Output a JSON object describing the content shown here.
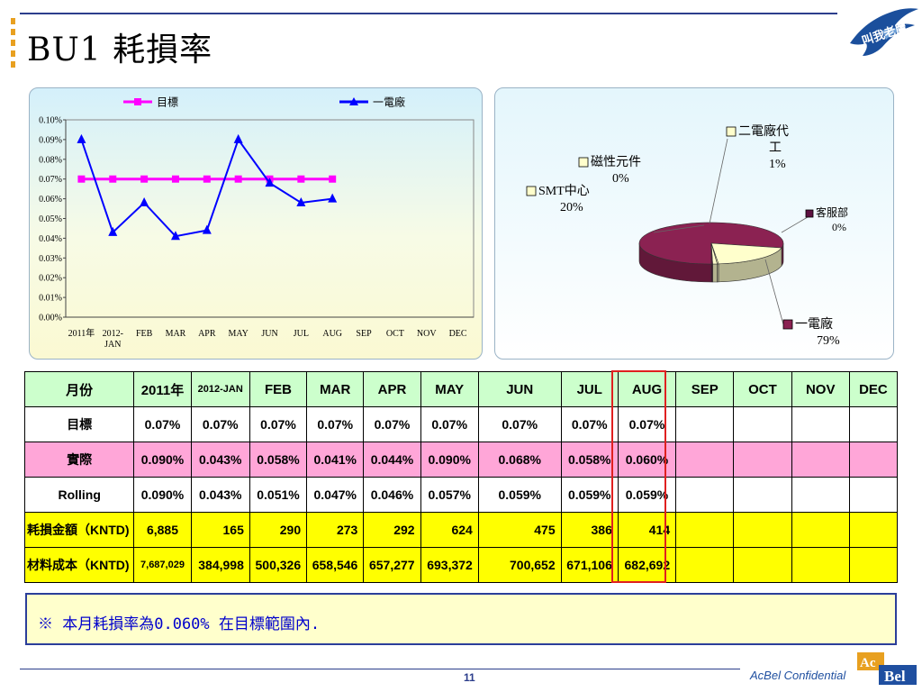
{
  "slide": {
    "title": "BU1  耗損率",
    "page_number": "11",
    "confidential": "AcBel Confidential",
    "brand": {
      "part1": "Ac",
      "part2": "Bel"
    },
    "logo_text": "叫我老鷹",
    "note": "※ 本月耗損率為0.060% 在目標範圍內."
  },
  "chart_data": [
    {
      "type": "line",
      "title": "",
      "xlabel": "",
      "ylabel": "",
      "categories": [
        "2011年",
        "2012-JAN",
        "FEB",
        "MAR",
        "APR",
        "MAY",
        "JUN",
        "JUL",
        "AUG",
        "SEP",
        "OCT",
        "NOV",
        "DEC"
      ],
      "category_lines": [
        [
          "2011年"
        ],
        [
          "2012-",
          "JAN"
        ],
        [
          "FEB"
        ],
        [
          "MAR"
        ],
        [
          "APR"
        ],
        [
          "MAY"
        ],
        [
          "JUN"
        ],
        [
          "JUL"
        ],
        [
          "AUG"
        ],
        [
          "SEP"
        ],
        [
          "OCT"
        ],
        [
          "NOV"
        ],
        [
          "DEC"
        ]
      ],
      "series": [
        {
          "name": "目標",
          "color": "#ff00ff",
          "marker": "square",
          "values": [
            0.07,
            0.07,
            0.07,
            0.07,
            0.07,
            0.07,
            0.07,
            0.07,
            0.07,
            null,
            null,
            null,
            null
          ]
        },
        {
          "name": "一電廠",
          "color": "#0000ff",
          "marker": "triangle",
          "values": [
            0.09,
            0.043,
            0.058,
            0.041,
            0.044,
            0.09,
            0.068,
            0.058,
            0.06,
            null,
            null,
            null,
            null
          ]
        }
      ],
      "ylim": [
        0,
        0.1
      ],
      "yticks": [
        "0.00%",
        "0.01%",
        "0.02%",
        "0.03%",
        "0.04%",
        "0.05%",
        "0.06%",
        "0.07%",
        "0.08%",
        "0.09%",
        "0.10%"
      ],
      "legend": "top",
      "grid": false
    },
    {
      "type": "pie",
      "title": "",
      "slices": [
        {
          "label": "一電廠",
          "pct_label": "79%",
          "value": 79,
          "color": "#8b2252"
        },
        {
          "label": "SMT中心",
          "pct_label": "20%",
          "value": 20,
          "color": "#ffffcc"
        },
        {
          "label": "磁性元件",
          "pct_label": "0%",
          "value": 0.3,
          "color": "#ffffcc"
        },
        {
          "label": "二電廠代工",
          "label_lines": [
            "二電廠代",
            "工"
          ],
          "pct_label": "1%",
          "value": 1,
          "color": "#ffffcc"
        },
        {
          "label": "客服部",
          "pct_label": "0%",
          "value": 0.3,
          "color": "#5c1040"
        }
      ]
    }
  ],
  "table": {
    "headers": [
      "月份",
      "2011年",
      "2012-JAN",
      "FEB",
      "MAR",
      "APR",
      "MAY",
      "JUN",
      "JUL",
      "AUG",
      "SEP",
      "OCT",
      "NOV",
      "DEC"
    ],
    "rows": {
      "target": {
        "label": "目標",
        "values": [
          "0.07%",
          "0.07%",
          "0.07%",
          "0.07%",
          "0.07%",
          "0.07%",
          "0.07%",
          "0.07%",
          "0.07%",
          "",
          "",
          "",
          ""
        ]
      },
      "actual": {
        "label": "實際",
        "values": [
          "0.090%",
          "0.043%",
          "0.058%",
          "0.041%",
          "0.044%",
          "0.090%",
          "0.068%",
          "0.058%",
          "0.060%",
          "",
          "",
          "",
          ""
        ]
      },
      "rolling": {
        "label": "Rolling",
        "values": [
          "0.090%",
          "0.043%",
          "0.051%",
          "0.047%",
          "0.046%",
          "0.057%",
          "0.059%",
          "0.059%",
          "0.059%",
          "",
          "",
          "",
          ""
        ]
      },
      "loss": {
        "label": "耗損金額（KNTD)",
        "values": [
          "6,885",
          "165",
          "290",
          "273",
          "292",
          "624",
          "475",
          "386",
          "414",
          "",
          "",
          "",
          ""
        ]
      },
      "cost": {
        "label": "材料成本（KNTD)",
        "values": [
          "7,687,029",
          "384,998",
          "500,326",
          "658,546",
          "657,277",
          "693,372",
          "700,652",
          "671,106",
          "682,692",
          "",
          "",
          "",
          ""
        ]
      }
    }
  }
}
